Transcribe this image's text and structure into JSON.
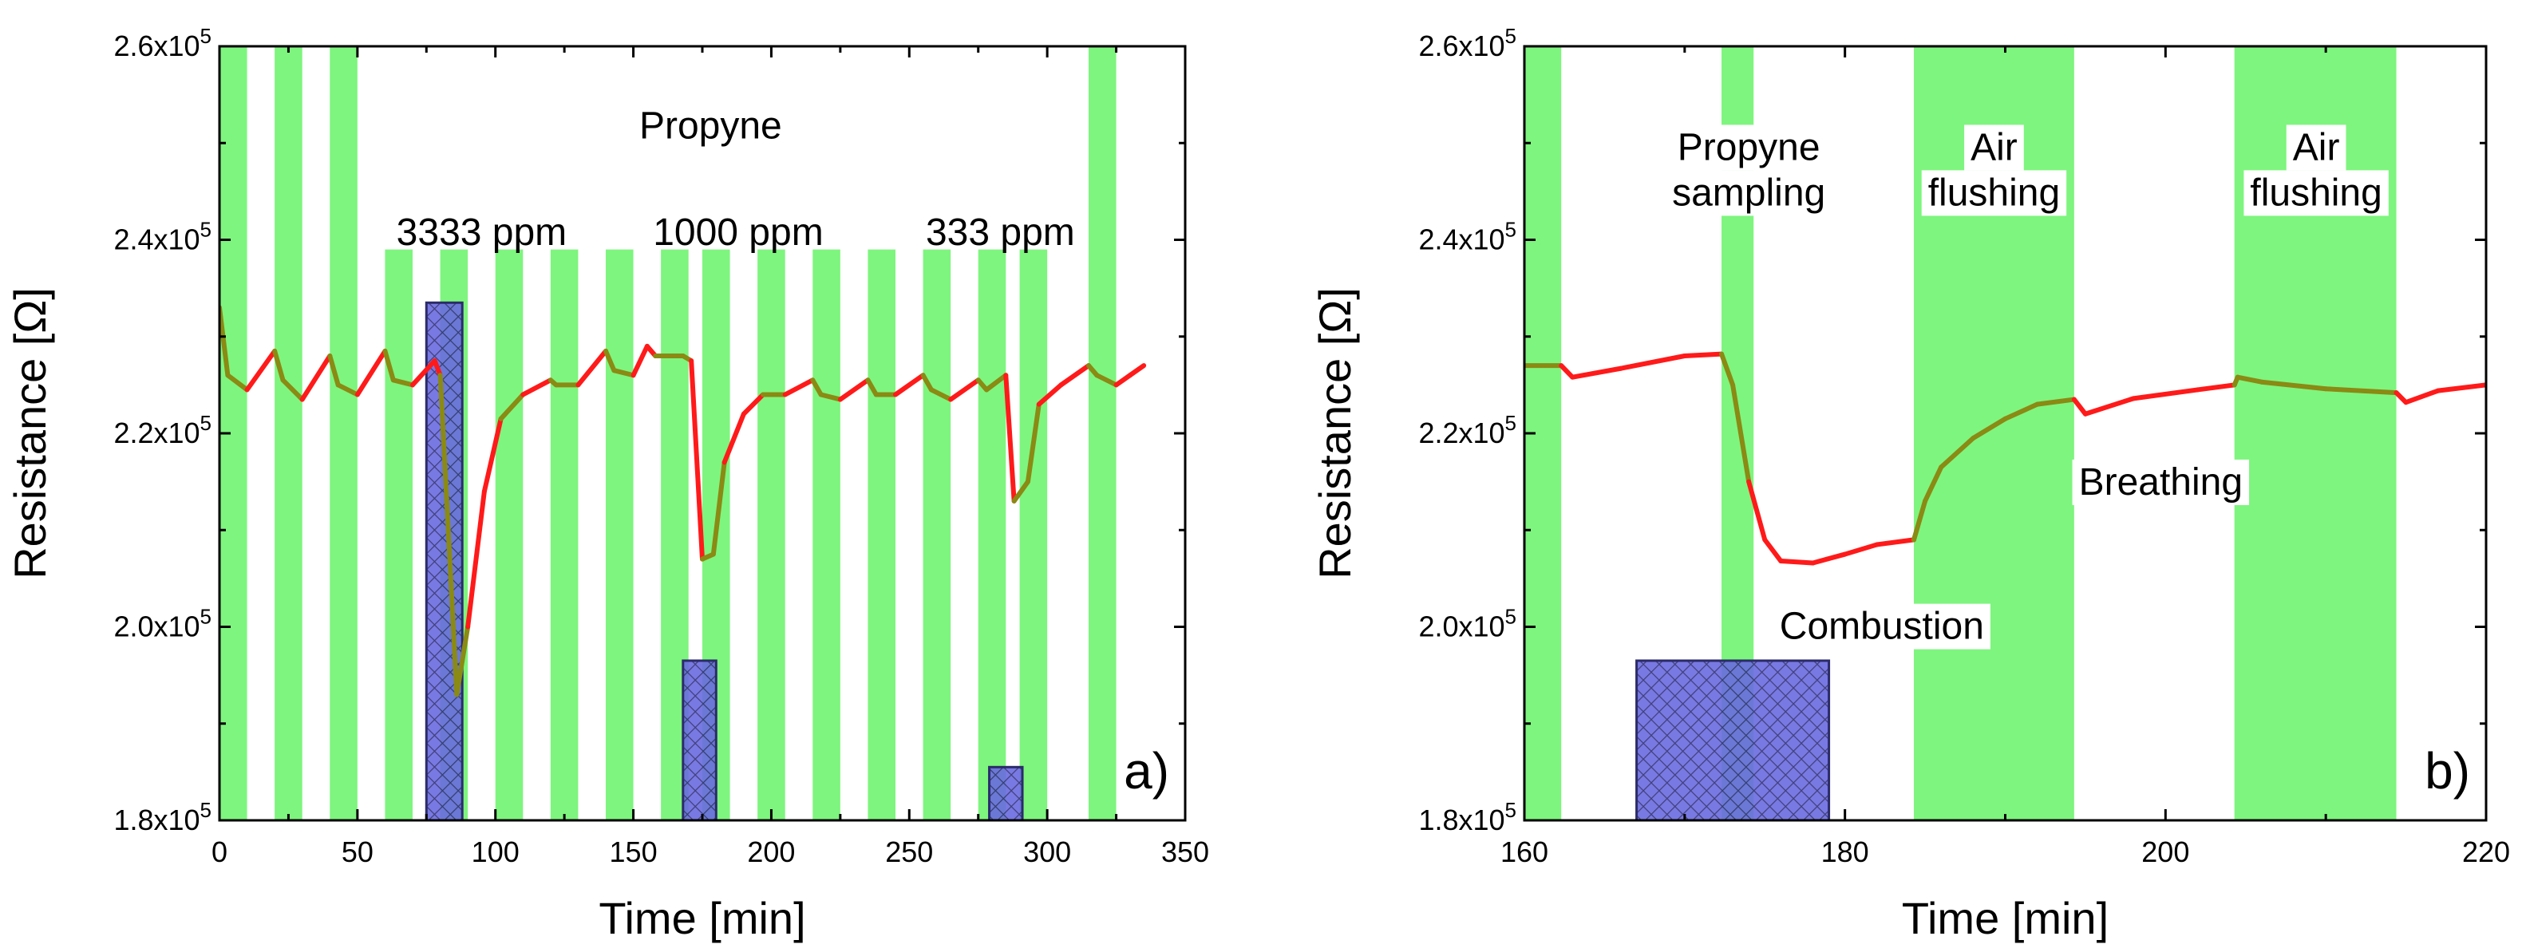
{
  "colors": {
    "air": "#7ef57e",
    "sampling": "#ff1a1a",
    "flush_trace": "#8a8a14",
    "bar_fill": "#6a6ae0",
    "bar_edge": "#2b2b6b",
    "axis": "#000000"
  },
  "chart_data": [
    {
      "id": "a",
      "type": "line",
      "panel_label": "a)",
      "xlabel": "Time [min]",
      "ylabel": "Resistance [Ω]",
      "xlim": [
        0,
        350
      ],
      "ylim": [
        180000,
        260000
      ],
      "xticks": [
        0,
        50,
        100,
        150,
        200,
        250,
        300,
        350
      ],
      "yticks": [
        {
          "value": 180000,
          "mantissa": "1.8x10",
          "exp": "5"
        },
        {
          "value": 200000,
          "mantissa": "2.0x10",
          "exp": "5"
        },
        {
          "value": 220000,
          "mantissa": "2.2x10",
          "exp": "5"
        },
        {
          "value": 240000,
          "mantissa": "2.4x10",
          "exp": "5"
        },
        {
          "value": 260000,
          "mantissa": "2.6x10",
          "exp": "5"
        }
      ],
      "air_bands": [
        [
          0,
          10
        ],
        [
          20,
          30
        ],
        [
          40,
          50
        ],
        [
          60,
          70
        ],
        [
          80,
          90
        ],
        [
          100,
          110
        ],
        [
          120,
          130
        ],
        [
          140,
          150
        ],
        [
          160,
          170
        ],
        [
          175,
          185
        ],
        [
          195,
          205
        ],
        [
          215,
          225
        ],
        [
          235,
          245
        ],
        [
          255,
          265
        ],
        [
          275,
          285
        ],
        [
          290,
          300
        ],
        [
          315,
          325
        ]
      ],
      "band_top_limit": 239000,
      "tall_bands": [
        0,
        1,
        2,
        16
      ],
      "combustion_bars": [
        {
          "x0": 75,
          "x1": 88,
          "top": 233500
        },
        {
          "x0": 168,
          "x1": 180,
          "top": 196500
        },
        {
          "x0": 279,
          "x1": 291,
          "top": 185500
        }
      ],
      "trace": [
        [
          0,
          233000
        ],
        [
          3,
          226000
        ],
        [
          10,
          224500
        ],
        [
          20,
          228500
        ],
        [
          23,
          225500
        ],
        [
          30,
          223500
        ],
        [
          40,
          228000
        ],
        [
          43,
          225000
        ],
        [
          50,
          224000
        ],
        [
          60,
          228500
        ],
        [
          63,
          225500
        ],
        [
          70,
          225000
        ],
        [
          78,
          227500
        ],
        [
          80,
          226000
        ],
        [
          86,
          193000
        ],
        [
          90,
          200000
        ],
        [
          96,
          214000
        ],
        [
          102,
          221500
        ],
        [
          110,
          224000
        ],
        [
          120,
          225500
        ],
        [
          122,
          225000
        ],
        [
          130,
          225000
        ],
        [
          140,
          228500
        ],
        [
          143,
          226500
        ],
        [
          150,
          226000
        ],
        [
          155,
          229000
        ],
        [
          158,
          228000
        ],
        [
          168,
          228000
        ],
        [
          171,
          227500
        ],
        [
          175,
          207000
        ],
        [
          179,
          207500
        ],
        [
          183,
          217000
        ],
        [
          190,
          222000
        ],
        [
          197,
          224000
        ],
        [
          205,
          224000
        ],
        [
          215,
          225500
        ],
        [
          218,
          224000
        ],
        [
          225,
          223500
        ],
        [
          235,
          225500
        ],
        [
          238,
          224000
        ],
        [
          245,
          224000
        ],
        [
          255,
          226000
        ],
        [
          258,
          224500
        ],
        [
          265,
          223500
        ],
        [
          275,
          225500
        ],
        [
          278,
          224500
        ],
        [
          285,
          226000
        ],
        [
          288,
          213000
        ],
        [
          293,
          215000
        ],
        [
          297,
          223000
        ],
        [
          305,
          225000
        ],
        [
          315,
          227000
        ],
        [
          318,
          226000
        ],
        [
          325,
          225000
        ],
        [
          330,
          226000
        ],
        [
          335,
          227000
        ]
      ],
      "annotations": [
        {
          "text": "Propyne",
          "x": 178,
          "y": 251500
        },
        {
          "text": "3333 ppm",
          "x": 95,
          "y": 240500
        },
        {
          "text": "1000 ppm",
          "x": 188,
          "y": 240500
        },
        {
          "text": "333 ppm",
          "x": 283,
          "y": 240500
        }
      ]
    },
    {
      "id": "b",
      "type": "line",
      "panel_label": "b)",
      "xlabel": "Time [min]",
      "ylabel": "Resistance [Ω]",
      "xlim": [
        160,
        220
      ],
      "ylim": [
        180000,
        260000
      ],
      "xticks": [
        160,
        180,
        200,
        220
      ],
      "yticks": [
        {
          "value": 180000,
          "mantissa": "1.8x10",
          "exp": "5"
        },
        {
          "value": 200000,
          "mantissa": "2.0x10",
          "exp": "5"
        },
        {
          "value": 220000,
          "mantissa": "2.2x10",
          "exp": "5"
        },
        {
          "value": 240000,
          "mantissa": "2.4x10",
          "exp": "5"
        },
        {
          "value": 260000,
          "mantissa": "2.6x10",
          "exp": "5"
        }
      ],
      "air_bands": [
        [
          160,
          162.3
        ],
        [
          172.3,
          174.3
        ],
        [
          184.3,
          194.3
        ],
        [
          204.3,
          214.4
        ]
      ],
      "combustion_bars": [
        {
          "x0": 167,
          "x1": 179,
          "top": 196500
        }
      ],
      "trace": [
        [
          160,
          227000
        ],
        [
          162.3,
          227000
        ],
        [
          163,
          225800
        ],
        [
          166,
          226700
        ],
        [
          170,
          228000
        ],
        [
          172.3,
          228200
        ],
        [
          173,
          225000
        ],
        [
          174,
          215000
        ],
        [
          175,
          209000
        ],
        [
          176,
          206800
        ],
        [
          178,
          206600
        ],
        [
          180,
          207500
        ],
        [
          182,
          208500
        ],
        [
          184.3,
          209000
        ],
        [
          185,
          213000
        ],
        [
          186,
          216500
        ],
        [
          188,
          219500
        ],
        [
          190,
          221500
        ],
        [
          192,
          223000
        ],
        [
          194.3,
          223500
        ],
        [
          195,
          222000
        ],
        [
          198,
          223600
        ],
        [
          202,
          224500
        ],
        [
          204.3,
          225000
        ],
        [
          204.5,
          225800
        ],
        [
          206,
          225300
        ],
        [
          210,
          224600
        ],
        [
          214.4,
          224200
        ],
        [
          215,
          223200
        ],
        [
          217,
          224400
        ],
        [
          220,
          225000
        ]
      ],
      "annotations": [
        {
          "text": "Propyne",
          "x": 174,
          "y": 249300
        },
        {
          "text": "sampling",
          "x": 174,
          "y": 244600
        },
        {
          "text": "Air",
          "x": 189.3,
          "y": 249300
        },
        {
          "text": "flushing",
          "x": 189.3,
          "y": 244600
        },
        {
          "text": "Air",
          "x": 209.4,
          "y": 249300
        },
        {
          "text": "flushing",
          "x": 209.4,
          "y": 244600
        },
        {
          "text": "Breathing",
          "x": 199.7,
          "y": 214700
        },
        {
          "text": "Combustion",
          "x": 182.3,
          "y": 199800
        }
      ]
    }
  ]
}
